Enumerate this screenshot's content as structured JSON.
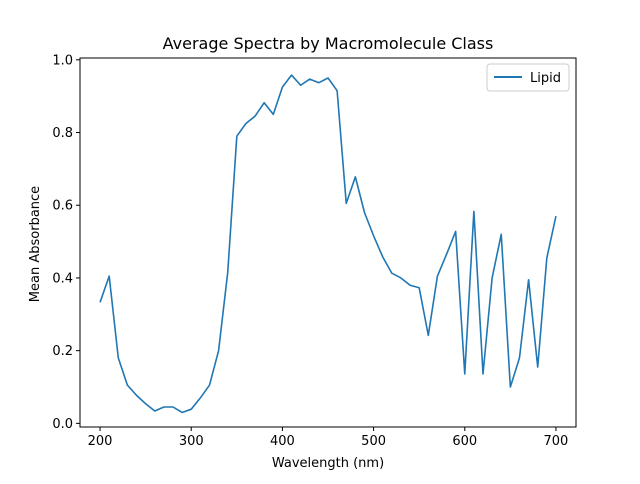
{
  "chart_data": {
    "type": "line",
    "title": "Average Spectra by Macromolecule Class",
    "xlabel": "Wavelength (nm)",
    "ylabel": "Mean Absorbance",
    "xlim": [
      178,
      722
    ],
    "ylim": [
      -0.01,
      1.005
    ],
    "xticks": [
      200,
      300,
      400,
      500,
      600,
      700
    ],
    "yticks": [
      0.0,
      0.2,
      0.4,
      0.6,
      0.8,
      1.0
    ],
    "xtick_labels": [
      "200",
      "300",
      "400",
      "500",
      "600",
      "700"
    ],
    "ytick_labels": [
      "0.0",
      "0.2",
      "0.4",
      "0.6",
      "0.8",
      "1.0"
    ],
    "grid": false,
    "legend_position": "upper right",
    "series": [
      {
        "name": "Lipid",
        "color": "#1f77b4",
        "x": [
          200,
          210,
          220,
          230,
          240,
          250,
          260,
          270,
          280,
          290,
          300,
          310,
          320,
          330,
          340,
          350,
          360,
          370,
          380,
          390,
          400,
          410,
          420,
          430,
          440,
          450,
          460,
          470,
          480,
          490,
          500,
          510,
          520,
          530,
          540,
          550,
          560,
          570,
          580,
          590,
          600,
          610,
          620,
          630,
          640,
          650,
          660,
          670,
          680,
          690,
          700
        ],
        "y": [
          0.333,
          0.405,
          0.18,
          0.105,
          0.077,
          0.054,
          0.034,
          0.045,
          0.045,
          0.03,
          0.039,
          0.07,
          0.105,
          0.2,
          0.415,
          0.79,
          0.825,
          0.845,
          0.882,
          0.85,
          0.925,
          0.958,
          0.93,
          0.947,
          0.937,
          0.95,
          0.915,
          0.605,
          0.678,
          0.58,
          0.516,
          0.458,
          0.413,
          0.4,
          0.38,
          0.373,
          0.242,
          0.405,
          0.465,
          0.528,
          0.136,
          0.583,
          0.136,
          0.4,
          0.52,
          0.1,
          0.18,
          0.395,
          0.155,
          0.455,
          0.57
        ]
      }
    ]
  }
}
